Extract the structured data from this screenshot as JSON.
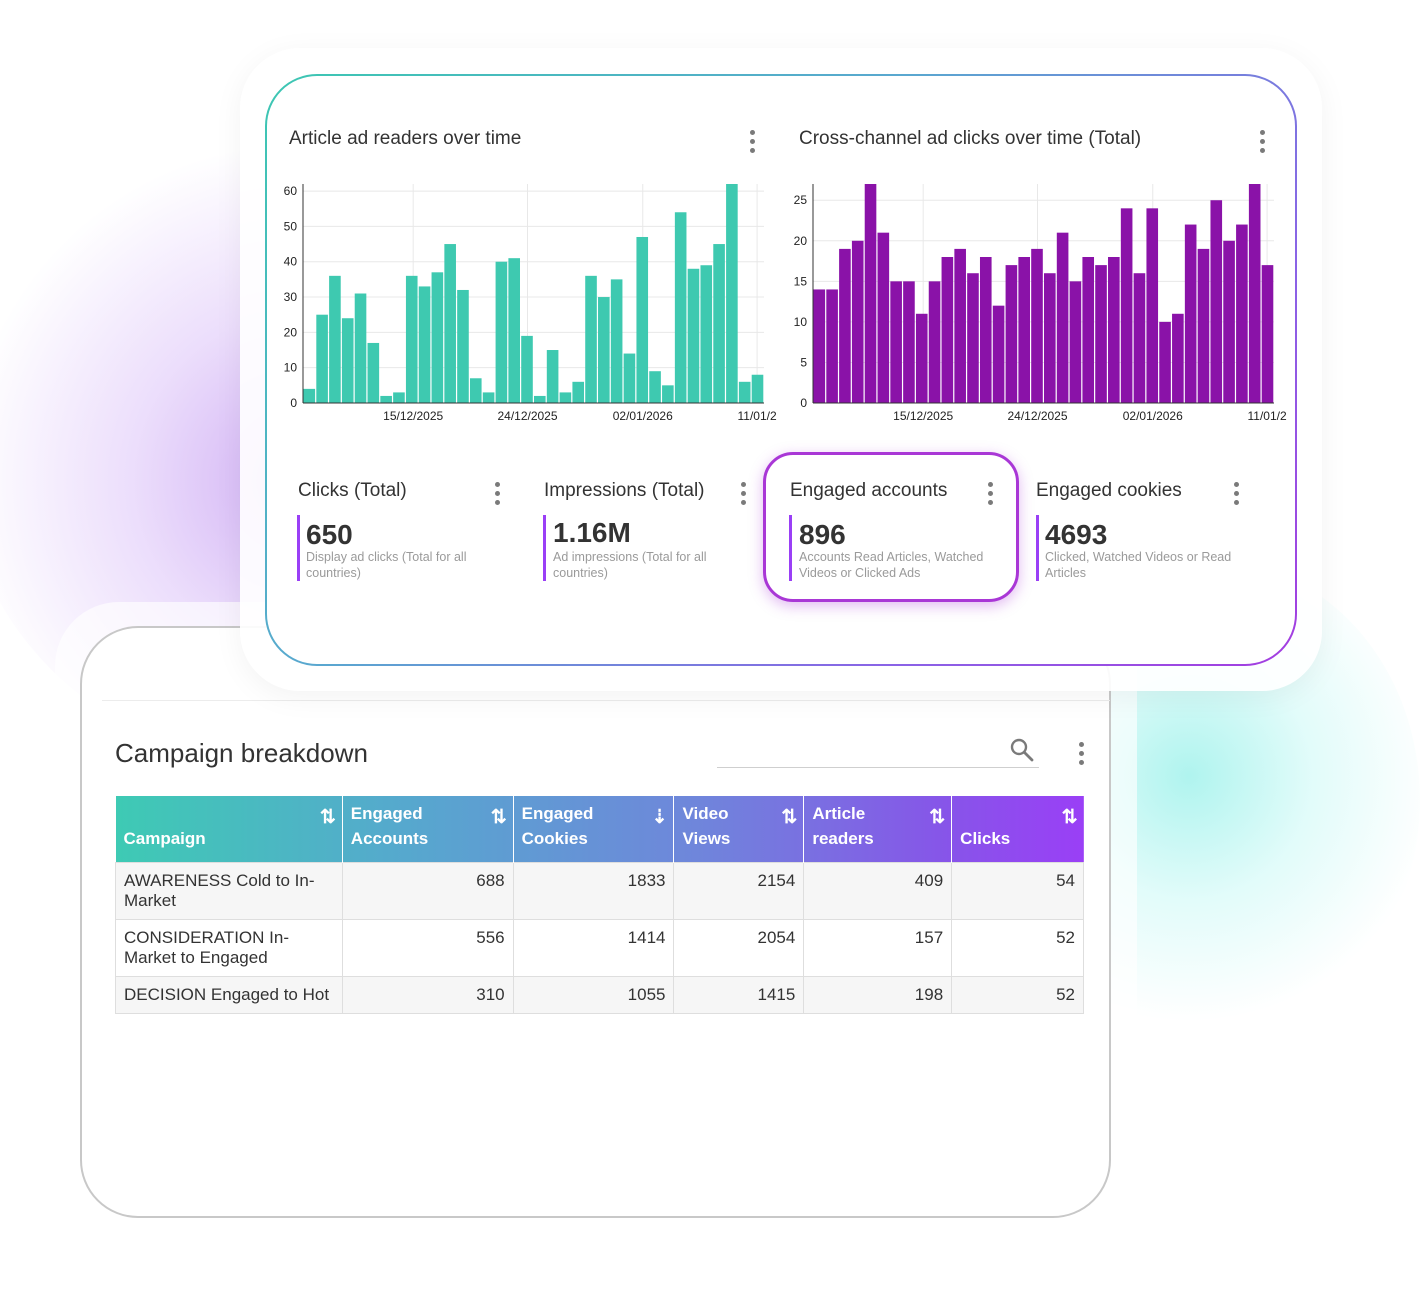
{
  "dashboard": {
    "charts": [
      {
        "title": "Article ad readers over time",
        "color": "#3ec9b0",
        "y_ticks": [
          "0",
          "10",
          "20",
          "30",
          "40",
          "50",
          "60"
        ],
        "x_ticks": [
          "15/12/2025",
          "24/12/2025",
          "02/01/2026",
          "11/01/2"
        ]
      },
      {
        "title": "Cross-channel ad clicks over time (Total)",
        "color": "#8a12a8",
        "y_ticks": [
          "0",
          "5",
          "10",
          "15",
          "20",
          "25"
        ],
        "x_ticks": [
          "15/12/2025",
          "24/12/2025",
          "02/01/2026",
          "11/01/2"
        ]
      }
    ],
    "kpis": [
      {
        "title": "Clicks (Total)",
        "value": "650",
        "desc": "Display ad clicks (Total for all countries)"
      },
      {
        "title": "Impressions (Total)",
        "value": "1.16M",
        "desc": "Ad impressions (Total for all countries)"
      },
      {
        "title": "Engaged accounts",
        "value": "896",
        "desc": "Accounts Read Articles, Watched Videos or Clicked Ads"
      },
      {
        "title": "Engaged cookies",
        "value": "4693",
        "desc": "Clicked, Watched Videos or Read Articles"
      }
    ]
  },
  "campaign": {
    "title": "Campaign breakdown",
    "columns": [
      "Campaign",
      "Engaged Accounts",
      "Engaged Cookies",
      "Video Views",
      "Article readers",
      "Clicks"
    ],
    "sort_icons": [
      "⇅",
      "⇅",
      "⇣",
      "⇅",
      "⇅",
      "⇅"
    ],
    "rows": [
      [
        "AWARENESS Cold to In-Market",
        "688",
        "1833",
        "2154",
        "409",
        "54"
      ],
      [
        "CONSIDERATION In-Market to Engaged",
        "556",
        "1414",
        "2054",
        "157",
        "52"
      ],
      [
        "DECISION Engaged to Hot",
        "310",
        "1055",
        "1415",
        "198",
        "52"
      ]
    ]
  },
  "chart_data": [
    {
      "type": "bar",
      "title": "Article ad readers over time",
      "xlabel": "",
      "ylabel": "",
      "ylim": [
        0,
        62
      ],
      "x_ticks": [
        "15/12/2025",
        "24/12/2025",
        "02/01/2026",
        "11/01/2"
      ],
      "values": [
        4,
        25,
        36,
        24,
        31,
        17,
        2,
        3,
        36,
        33,
        37,
        45,
        32,
        7,
        3,
        40,
        41,
        19,
        2,
        15,
        3,
        6,
        36,
        30,
        35,
        14,
        47,
        9,
        5,
        54,
        38,
        39,
        45,
        62,
        6,
        8
      ]
    },
    {
      "type": "bar",
      "title": "Cross-channel ad clicks over time (Total)",
      "xlabel": "",
      "ylabel": "",
      "ylim": [
        0,
        27
      ],
      "x_ticks": [
        "15/12/2025",
        "24/12/2025",
        "02/01/2026",
        "11/01/2"
      ],
      "values": [
        14,
        14,
        19,
        20,
        27,
        21,
        15,
        15,
        11,
        15,
        18,
        19,
        16,
        18,
        12,
        17,
        18,
        19,
        16,
        21,
        15,
        18,
        17,
        18,
        24,
        16,
        24,
        10,
        11,
        22,
        19,
        25,
        20,
        22,
        27,
        17
      ]
    }
  ]
}
